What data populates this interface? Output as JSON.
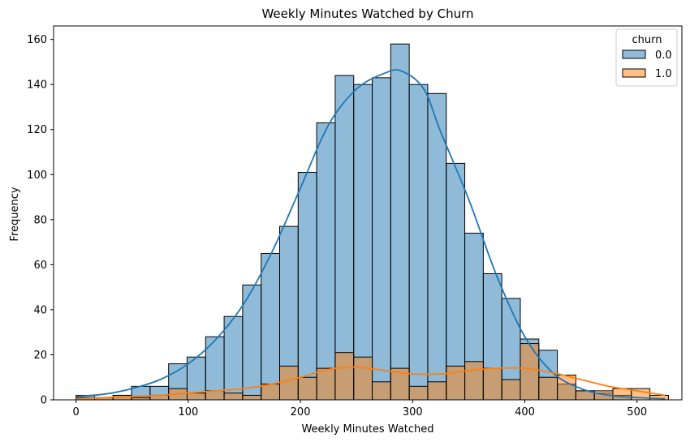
{
  "chart_data": {
    "type": "histogram",
    "title": "Weekly Minutes Watched by Churn",
    "xlabel": "Weekly Minutes Watched",
    "ylabel": "Frequency",
    "xlim": [
      -20,
      540
    ],
    "ylim": [
      0,
      166
    ],
    "xticks": [
      0,
      100,
      200,
      300,
      400,
      500
    ],
    "yticks": [
      0,
      20,
      40,
      60,
      80,
      100,
      120,
      140,
      160
    ],
    "bin_start": 0,
    "bin_width": 16.5,
    "legend": {
      "title": "churn",
      "position": "upper right"
    },
    "series": [
      {
        "name": "0.0",
        "color": "#1f77b4",
        "fill": "rgba(31,119,180,0.5)",
        "values": [
          2,
          1,
          2,
          6,
          6,
          16,
          19,
          28,
          37,
          51,
          65,
          77,
          101,
          123,
          144,
          140,
          143,
          158,
          140,
          136,
          105,
          74,
          56,
          45,
          27,
          22,
          7,
          4,
          3,
          2,
          0,
          0
        ]
      },
      {
        "name": "1.0",
        "color": "#ff7f0e",
        "fill": "rgba(255,127,14,0.5)",
        "values": [
          1,
          1,
          2,
          1,
          2,
          5,
          3,
          4,
          3,
          2,
          7,
          15,
          10,
          14,
          21,
          19,
          8,
          14,
          6,
          8,
          15,
          17,
          14,
          9,
          25,
          10,
          11,
          4,
          4,
          5,
          5,
          2
        ]
      }
    ],
    "kde": [
      {
        "name": "0.0",
        "color": "#1f77b4",
        "x": [
          0,
          25,
          50,
          75,
          100,
          125,
          150,
          175,
          200,
          225,
          250,
          275,
          290,
          310,
          325,
          350,
          375,
          400,
          425,
          450,
          475,
          500,
          525
        ],
        "y": [
          1.5,
          2.5,
          5,
          9,
          16,
          27,
          43,
          66,
          94,
          122,
          138,
          145,
          146,
          138,
          119,
          89,
          55,
          28,
          12,
          5,
          2,
          1,
          0.5
        ]
      },
      {
        "name": "1.0",
        "color": "#ff7f0e",
        "x": [
          0,
          25,
          50,
          75,
          100,
          125,
          150,
          175,
          200,
          225,
          250,
          275,
          300,
          325,
          350,
          375,
          400,
          425,
          450,
          475,
          500,
          525
        ],
        "y": [
          0.5,
          1,
          1.5,
          2,
          3,
          4,
          5,
          7,
          10,
          13.5,
          14.5,
          13,
          11.5,
          11.5,
          13,
          14,
          14,
          12,
          9,
          6,
          4,
          2
        ]
      }
    ]
  }
}
